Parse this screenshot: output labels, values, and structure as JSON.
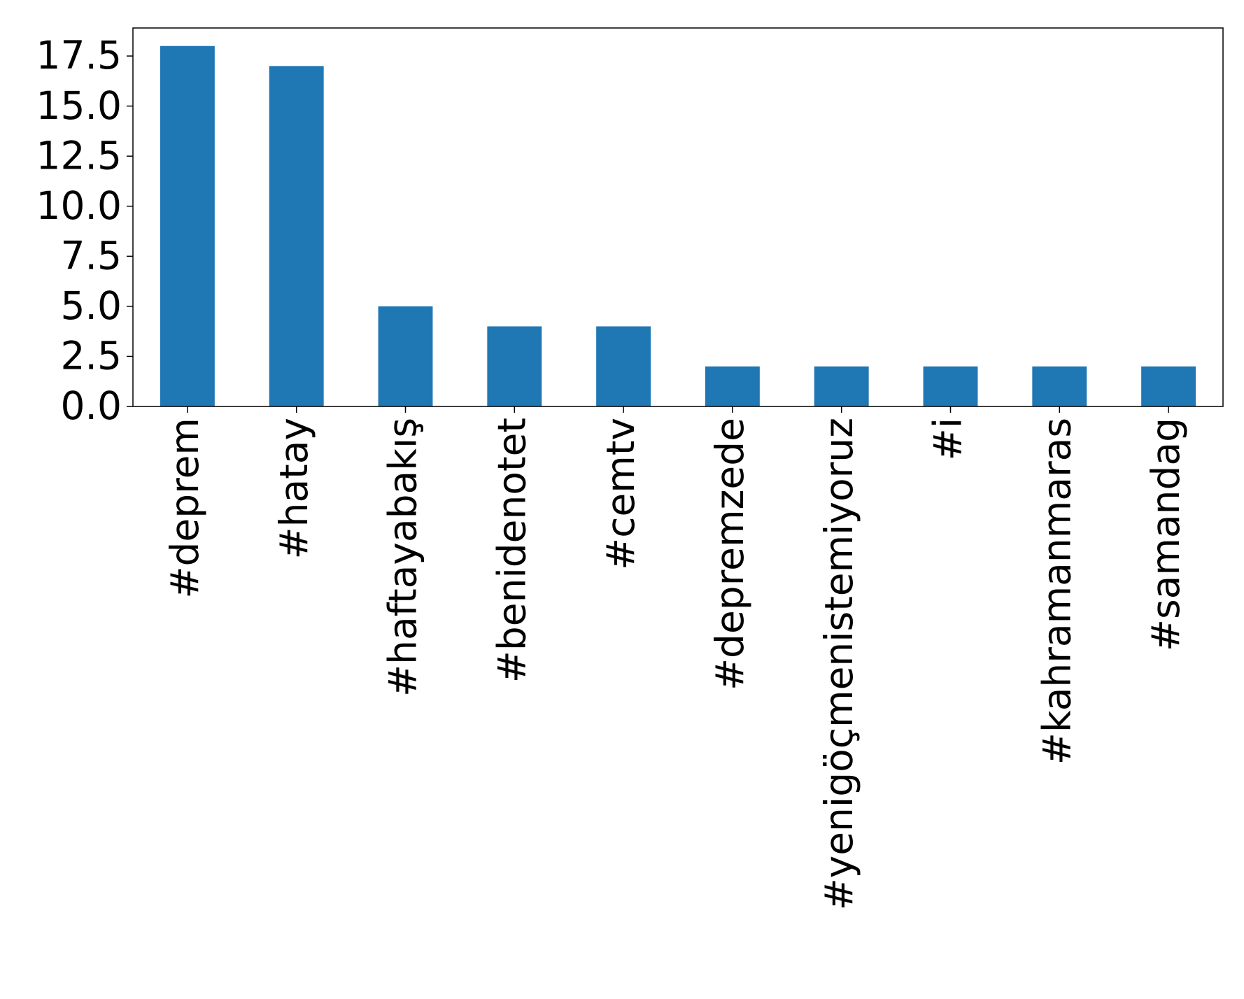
{
  "chart_data": {
    "type": "bar",
    "categories": [
      "#deprem",
      "#hatay",
      "#haftayabakış",
      "#benidenotet",
      "#cemtv",
      "#depremzede",
      "#yenigöçmenistemiyoruz",
      "#i",
      "#kahramanmaras",
      "#samandag"
    ],
    "values": [
      18,
      17,
      5,
      4,
      4,
      2,
      2,
      2,
      2,
      2
    ],
    "color": "#1f77b4",
    "ylim": [
      0,
      18.9
    ],
    "yticks": [
      {
        "value": 0,
        "label": "0.0"
      },
      2.5,
      {
        "value": 5,
        "label": "5.0"
      },
      7.5,
      {
        "value": 10,
        "label": "10.0"
      },
      12.5,
      {
        "value": 15,
        "label": "15.0"
      },
      17.5
    ],
    "grid": false
  }
}
